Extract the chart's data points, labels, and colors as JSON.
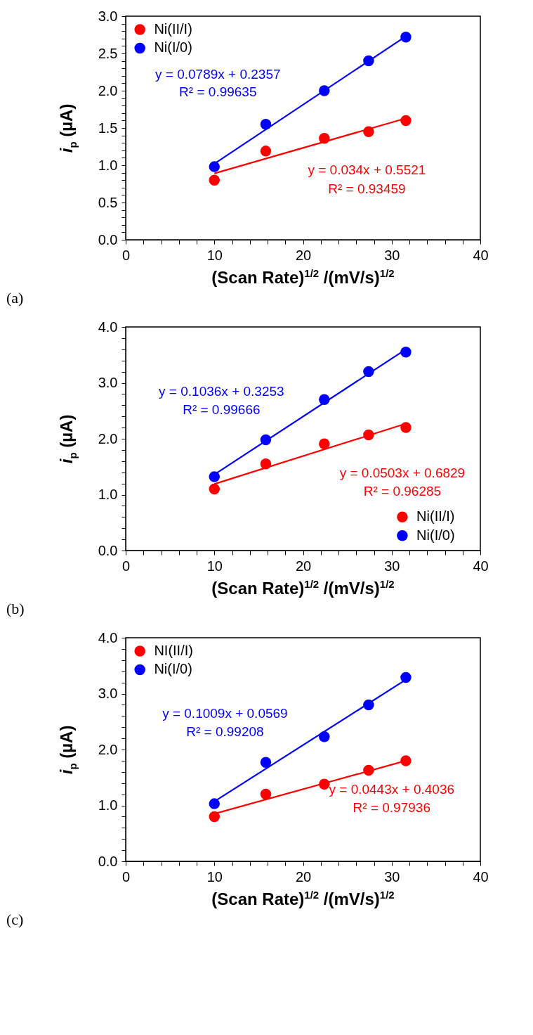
{
  "chart_data": [
    {
      "type": "scatter",
      "xlabel": "(Scan Rate)$^{1/2}$ /(mV/s)$^{1/2}$",
      "ylabel": "i$_{p}$ (µA)",
      "xlim": [
        0,
        40
      ],
      "ylim": [
        0,
        3
      ],
      "xticks": [
        0,
        {
          "value": 2,
          "label": null
        },
        {
          "value": 4,
          "label": null
        },
        {
          "value": 6,
          "label": null
        },
        {
          "value": 8,
          "label": null
        },
        10,
        {
          "value": 12,
          "label": null
        },
        {
          "value": 14,
          "label": null
        },
        {
          "value": 16,
          "label": null
        },
        {
          "value": 18,
          "label": null
        },
        20,
        {
          "value": 22,
          "label": null
        },
        {
          "value": 24,
          "label": null
        },
        {
          "value": 26,
          "label": null
        },
        {
          "value": 28,
          "label": null
        },
        30,
        {
          "value": 32,
          "label": null
        },
        {
          "value": 34,
          "label": null
        },
        {
          "value": 36,
          "label": null
        },
        {
          "value": 38,
          "label": null
        },
        40
      ],
      "yticks": [
        {
          "value": 0,
          "label": "0.0"
        },
        {
          "value": 0.1,
          "label": null
        },
        {
          "value": 0.2,
          "label": null
        },
        {
          "value": 0.3,
          "label": null
        },
        {
          "value": 0.4,
          "label": null
        },
        {
          "value": 0.5,
          "label": "0.5"
        },
        {
          "value": 0.6,
          "label": null
        },
        {
          "value": 0.7,
          "label": null
        },
        {
          "value": 0.8,
          "label": null
        },
        {
          "value": 0.9,
          "label": null
        },
        {
          "value": 1,
          "label": "1.0"
        },
        {
          "value": 1.1,
          "label": null
        },
        {
          "value": 1.2,
          "label": null
        },
        {
          "value": 1.3,
          "label": null
        },
        {
          "value": 1.4,
          "label": null
        },
        {
          "value": 1.5,
          "label": "1.5"
        },
        {
          "value": 1.6,
          "label": null
        },
        {
          "value": 1.7,
          "label": null
        },
        {
          "value": 1.8,
          "label": null
        },
        {
          "value": 1.9,
          "label": null
        },
        {
          "value": 2,
          "label": "2.0"
        },
        {
          "value": 2.1,
          "label": null
        },
        {
          "value": 2.2,
          "label": null
        },
        {
          "value": 2.3,
          "label": null
        },
        {
          "value": 2.4,
          "label": null
        },
        {
          "value": 2.5,
          "label": "2.5"
        },
        {
          "value": 2.6,
          "label": null
        },
        {
          "value": 2.7,
          "label": null
        },
        {
          "value": 2.8,
          "label": null
        },
        {
          "value": 2.9,
          "label": null
        },
        {
          "value": 3,
          "label": "3.0"
        }
      ],
      "grid": false,
      "legend": "top left",
      "marker": "circle",
      "line_style": "solid",
      "series": [
        {
          "name": "Ni(II/I)",
          "color": "#ff0000",
          "x": [
            10,
            15.8,
            22.4,
            27.4,
            31.6
          ],
          "values": [
            0.8,
            1.19,
            1.36,
            1.45,
            1.6
          ]
        },
        {
          "name": "Ni(I/0)",
          "color": "#0000ff",
          "x": [
            10,
            15.8,
            22.4,
            27.4,
            31.6
          ],
          "values": [
            0.98,
            1.55,
            2.0,
            2.4,
            2.72
          ]
        },
        {
          "type": "line",
          "marker": "none",
          "color": "#ff0000",
          "x": [
            10,
            31.6
          ],
          "values": [
            0.89,
            1.63
          ]
        },
        {
          "type": "line",
          "marker": "none",
          "color": "#0000ff",
          "x": [
            10,
            31.6
          ],
          "values": [
            1.02,
            2.73
          ]
        }
      ],
      "annotations": [
        "y = 0.0789x + 0.2357",
        "R² = 0.99635",
        "y = 0.034x + 0.5521",
        "R² = 0.93459",
        "(a)"
      ]
    },
    {
      "type": "scatter",
      "xlabel": "(Scan Rate)$^{1/2}$ /(mV/s)$^{1/2}$",
      "ylabel": "i$_{p}$ (µA)",
      "xlim": [
        0,
        40
      ],
      "ylim": [
        0,
        4
      ],
      "xticks": [
        0,
        {
          "value": 2,
          "label": null
        },
        {
          "value": 4,
          "label": null
        },
        {
          "value": 6,
          "label": null
        },
        {
          "value": 8,
          "label": null
        },
        10,
        {
          "value": 12,
          "label": null
        },
        {
          "value": 14,
          "label": null
        },
        {
          "value": 16,
          "label": null
        },
        {
          "value": 18,
          "label": null
        },
        20,
        {
          "value": 22,
          "label": null
        },
        {
          "value": 24,
          "label": null
        },
        {
          "value": 26,
          "label": null
        },
        {
          "value": 28,
          "label": null
        },
        30,
        {
          "value": 32,
          "label": null
        },
        {
          "value": 34,
          "label": null
        },
        {
          "value": 36,
          "label": null
        },
        {
          "value": 38,
          "label": null
        },
        40
      ],
      "yticks": [
        {
          "value": 0,
          "label": "0.0"
        },
        {
          "value": 0.2,
          "label": null
        },
        {
          "value": 0.4,
          "label": null
        },
        {
          "value": 0.6,
          "label": null
        },
        {
          "value": 0.8,
          "label": null
        },
        {
          "value": 1,
          "label": "1.0"
        },
        {
          "value": 1.2,
          "label": null
        },
        {
          "value": 1.4,
          "label": null
        },
        {
          "value": 1.6,
          "label": null
        },
        {
          "value": 1.8,
          "label": null
        },
        {
          "value": 2,
          "label": "2.0"
        },
        {
          "value": 2.2,
          "label": null
        },
        {
          "value": 2.4,
          "label": null
        },
        {
          "value": 2.6,
          "label": null
        },
        {
          "value": 2.8,
          "label": null
        },
        {
          "value": 3,
          "label": "3.0"
        },
        {
          "value": 3.2,
          "label": null
        },
        {
          "value": 3.4,
          "label": null
        },
        {
          "value": 3.6,
          "label": null
        },
        {
          "value": 3.8,
          "label": null
        },
        {
          "value": 4,
          "label": "4.0"
        }
      ],
      "grid": false,
      "legend": "bottom right",
      "marker": "circle",
      "line_style": "solid",
      "series": [
        {
          "name": "Ni(II/I)",
          "color": "#ff0000",
          "x": [
            10,
            15.8,
            22.4,
            27.4,
            31.6
          ],
          "values": [
            1.1,
            1.55,
            1.91,
            2.07,
            2.2
          ]
        },
        {
          "name": "Ni(I/0)",
          "color": "#0000ff",
          "x": [
            10,
            15.8,
            22.4,
            27.4,
            31.6
          ],
          "values": [
            1.32,
            1.98,
            2.7,
            3.2,
            3.55
          ]
        },
        {
          "type": "line",
          "marker": "none",
          "color": "#ff0000",
          "x": [
            10,
            31.6
          ],
          "values": [
            1.19,
            2.27
          ]
        },
        {
          "type": "line",
          "marker": "none",
          "color": "#0000ff",
          "x": [
            10,
            31.6
          ],
          "values": [
            1.36,
            3.6
          ]
        }
      ],
      "annotations": [
        "y = 0.1036x + 0.3253",
        "R² = 0.99666",
        "y = 0.0503x + 0.6829",
        "R² = 0.96285",
        "(b)"
      ]
    },
    {
      "type": "scatter",
      "xlabel": "(Scan Rate)$^{1/2}$ /(mV/s)$^{1/2}$",
      "ylabel": "i$_{p}$ (µA)",
      "xlim": [
        0,
        40
      ],
      "ylim": [
        0,
        4
      ],
      "xticks": [
        0,
        {
          "value": 2,
          "label": null
        },
        {
          "value": 4,
          "label": null
        },
        {
          "value": 6,
          "label": null
        },
        {
          "value": 8,
          "label": null
        },
        10,
        {
          "value": 12,
          "label": null
        },
        {
          "value": 14,
          "label": null
        },
        {
          "value": 16,
          "label": null
        },
        {
          "value": 18,
          "label": null
        },
        20,
        {
          "value": 22,
          "label": null
        },
        {
          "value": 24,
          "label": null
        },
        {
          "value": 26,
          "label": null
        },
        {
          "value": 28,
          "label": null
        },
        30,
        {
          "value": 32,
          "label": null
        },
        {
          "value": 34,
          "label": null
        },
        {
          "value": 36,
          "label": null
        },
        {
          "value": 38,
          "label": null
        },
        40
      ],
      "yticks": [
        {
          "value": 0,
          "label": "0.0"
        },
        {
          "value": 0.2,
          "label": null
        },
        {
          "value": 0.4,
          "label": null
        },
        {
          "value": 0.6,
          "label": null
        },
        {
          "value": 0.8,
          "label": null
        },
        {
          "value": 1,
          "label": "1.0"
        },
        {
          "value": 1.2,
          "label": null
        },
        {
          "value": 1.4,
          "label": null
        },
        {
          "value": 1.6,
          "label": null
        },
        {
          "value": 1.8,
          "label": null
        },
        {
          "value": 2,
          "label": "2.0"
        },
        {
          "value": 2.2,
          "label": null
        },
        {
          "value": 2.4,
          "label": null
        },
        {
          "value": 2.6,
          "label": null
        },
        {
          "value": 2.8,
          "label": null
        },
        {
          "value": 3,
          "label": "3.0"
        },
        {
          "value": 3.2,
          "label": null
        },
        {
          "value": 3.4,
          "label": null
        },
        {
          "value": 3.6,
          "label": null
        },
        {
          "value": 3.8,
          "label": null
        },
        {
          "value": 4,
          "label": "4.0"
        }
      ],
      "grid": false,
      "legend": "top left",
      "marker": "circle",
      "line_style": "solid",
      "series": [
        {
          "name": "NI(II/I)",
          "color": "#ff0000",
          "x": [
            10,
            15.8,
            22.4,
            27.4,
            31.6
          ],
          "values": [
            0.8,
            1.2,
            1.38,
            1.63,
            1.8
          ]
        },
        {
          "name": "Ni(I/0)",
          "color": "#0000ff",
          "x": [
            10,
            15.8,
            22.4,
            27.4,
            31.6
          ],
          "values": [
            1.03,
            1.77,
            2.23,
            2.8,
            3.29
          ]
        },
        {
          "type": "line",
          "marker": "none",
          "color": "#ff0000",
          "x": [
            10,
            31.6
          ],
          "values": [
            0.85,
            1.8
          ]
        },
        {
          "type": "line",
          "marker": "none",
          "color": "#0000ff",
          "x": [
            10,
            31.6
          ],
          "values": [
            1.07,
            3.25
          ]
        }
      ],
      "annotations": [
        "y = 0.1009x + 0.0569",
        "R² = 0.99208",
        "y = 0.0443x + 0.4036",
        "R² = 0.97936",
        "(c)"
      ]
    }
  ]
}
